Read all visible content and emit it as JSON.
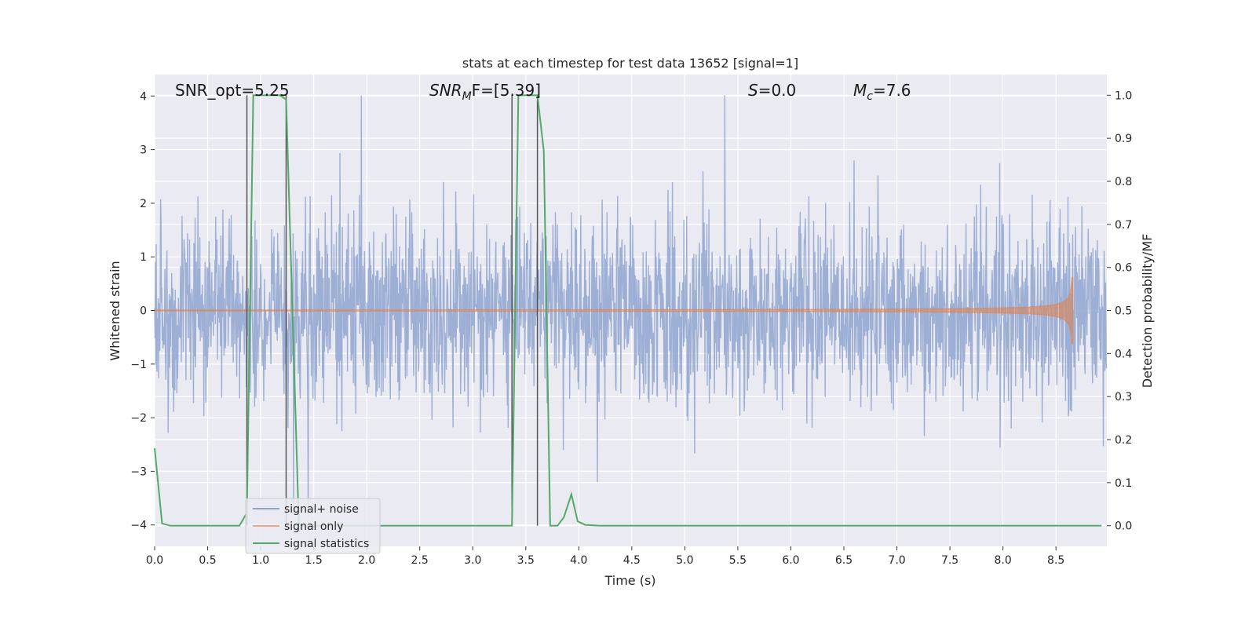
{
  "chart_data": {
    "type": "line",
    "title": "stats at each timestep for test data 13652 [signal=1]",
    "xlabel": "Time (s)",
    "ylabel": "Whitened strain",
    "ylabel_right": "Detection probability/MF",
    "xlim": [
      0,
      8.98
    ],
    "ylim": [
      -4.4,
      4.4
    ],
    "ylim_right": [
      -0.048,
      1.048
    ],
    "grid": true,
    "legend_placement": "lower-left",
    "x_ticks": [
      "0.0",
      "0.5",
      "1.0",
      "1.5",
      "2.0",
      "2.5",
      "3.0",
      "3.5",
      "4.0",
      "4.5",
      "5.0",
      "5.5",
      "6.0",
      "6.5",
      "7.0",
      "7.5",
      "8.0",
      "8.5"
    ],
    "y_ticks": [
      "-4",
      "-3",
      "-2",
      "-1",
      "0",
      "1",
      "2",
      "3",
      "4"
    ],
    "y_ticks_right": [
      "0.0",
      "0.1",
      "0.2",
      "0.3",
      "0.4",
      "0.5",
      "0.6",
      "0.7",
      "0.8",
      "0.9",
      "1.0"
    ],
    "annotations": {
      "snr_opt": "SNR_opt=5.25",
      "snr_mf_base": "SNR",
      "snr_mf_sub": "M",
      "snr_mf_rest": "F=[5.39]",
      "s_italic": "S",
      "s_rest": "=0.0",
      "mc_italic": "M",
      "mc_sub": "c",
      "mc_rest": "=7.6"
    },
    "series": [
      {
        "name": "signal+ noise",
        "color": "#8fa5cf"
      },
      {
        "name": "signal only",
        "color": "#dd8452",
        "chirp_end_time": 8.66,
        "chirp_peak_amplitude": 0.62
      },
      {
        "name": "signal statistics",
        "color": "#55a868",
        "axis": "right",
        "points": [
          [
            0,
            0.18
          ],
          [
            0.07,
            0.005
          ],
          [
            0.15,
            0
          ],
          [
            0.8,
            0
          ],
          [
            0.87,
            0.03
          ],
          [
            0.93,
            1.0
          ],
          [
            1.18,
            1.0
          ],
          [
            1.24,
            0.99
          ],
          [
            1.36,
            0
          ],
          [
            3.37,
            0
          ],
          [
            3.43,
            1.0
          ],
          [
            3.61,
            1.0
          ],
          [
            3.67,
            0.87
          ],
          [
            3.73,
            0
          ],
          [
            3.8,
            0
          ],
          [
            3.86,
            0.02
          ],
          [
            3.93,
            0.073
          ],
          [
            3.99,
            0.01
          ],
          [
            4.06,
            0.002
          ],
          [
            4.19,
            0
          ],
          [
            8.93,
            0
          ]
        ]
      }
    ],
    "vertical_markers": {
      "color": "#555555",
      "x": [
        0.87,
        1.24,
        3.37,
        3.61
      ]
    }
  }
}
